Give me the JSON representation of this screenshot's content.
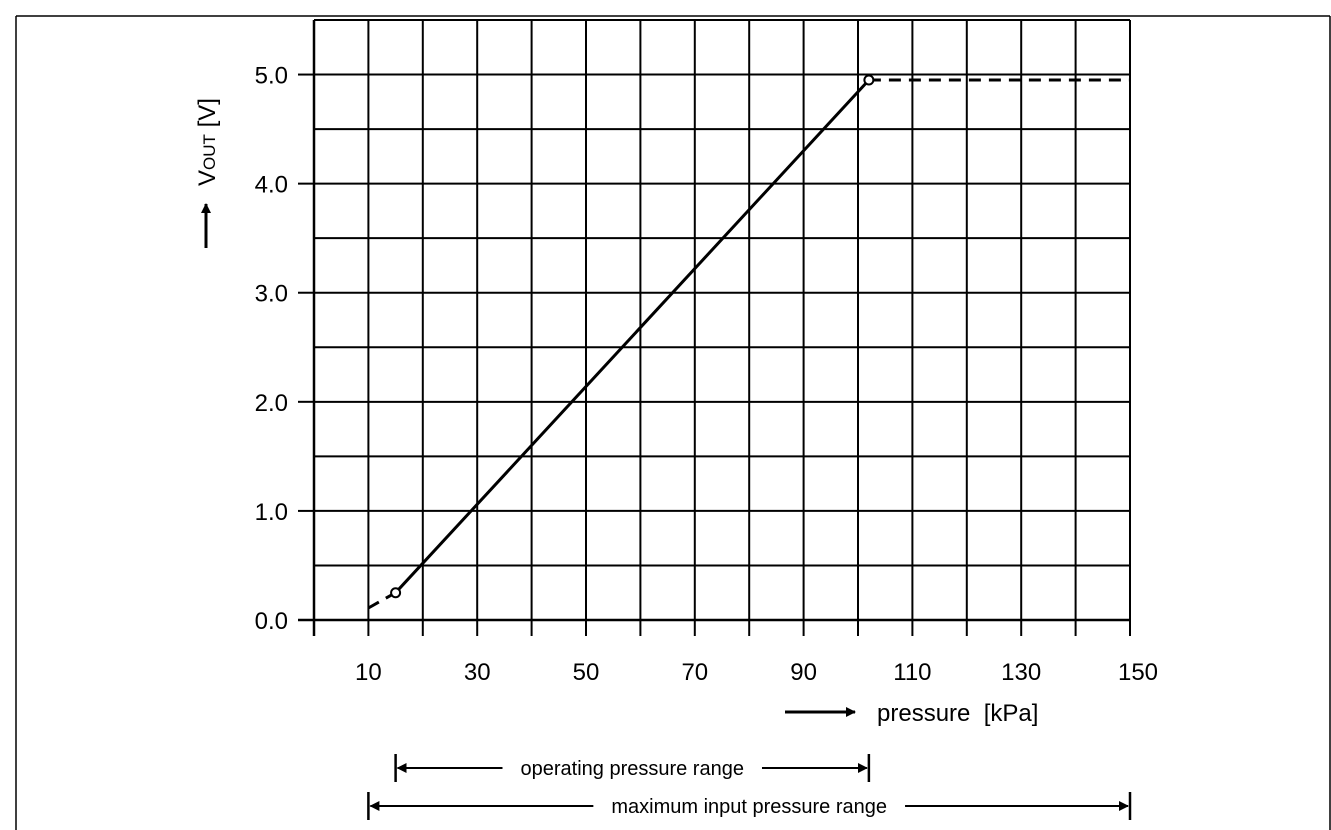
{
  "chart_data": {
    "type": "line",
    "xlabel": "pressure  [kPa]",
    "ylabel": {
      "main": "V",
      "sub": "OUT",
      "unit": " [V]"
    },
    "x_ticks": [
      10,
      30,
      50,
      70,
      90,
      110,
      130,
      150
    ],
    "x_tick_labels": [
      "10",
      "30",
      "50",
      "70",
      "90",
      "110",
      "130",
      "150"
    ],
    "y_ticks": [
      0,
      1,
      2,
      3,
      4,
      5
    ],
    "y_tick_labels": [
      "0.0",
      "1.0",
      "2.0",
      "3.0",
      "4.0",
      "5.0"
    ],
    "xlim": [
      0,
      150
    ],
    "ylim": [
      0,
      5.5
    ],
    "x_grid_step": 10,
    "y_grid_step": 0.5,
    "grid": true,
    "series": [
      {
        "style": "dashed",
        "points": [
          [
            10,
            0.11
          ],
          [
            15,
            0.25
          ]
        ]
      },
      {
        "style": "solid",
        "points": [
          [
            15,
            0.25
          ],
          [
            102,
            4.95
          ]
        ]
      },
      {
        "style": "dashed",
        "points": [
          [
            102,
            4.95
          ],
          [
            150,
            4.95
          ]
        ]
      }
    ],
    "markers": [
      [
        15,
        0.25
      ],
      [
        102,
        4.95
      ]
    ],
    "ranges": [
      {
        "label": "operating pressure range",
        "from": 15,
        "to": 102
      },
      {
        "label": "maximum input pressure range",
        "from": 10,
        "to": 150
      }
    ]
  }
}
